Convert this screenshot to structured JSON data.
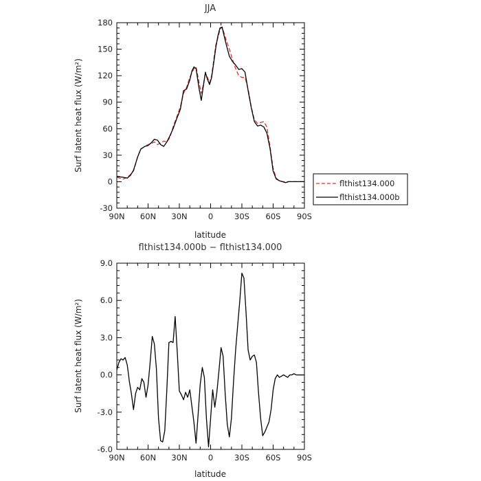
{
  "chart_data": [
    {
      "type": "line",
      "title": "JJA",
      "xlabel": "latitude",
      "ylabel": "Surf latent heat flux (W/m²)",
      "xlim": [
        90,
        -90
      ],
      "ylim": [
        -30,
        180
      ],
      "xticks": [
        {
          "value": 90,
          "label": "90N"
        },
        {
          "value": 60,
          "label": "60N"
        },
        {
          "value": 30,
          "label": "30N"
        },
        {
          "value": 0,
          "label": "0"
        },
        {
          "value": -30,
          "label": "30S"
        },
        {
          "value": -60,
          "label": "60S"
        },
        {
          "value": -90,
          "label": "90S"
        }
      ],
      "yticks": [
        {
          "value": -30,
          "label": "-30"
        },
        {
          "value": 0,
          "label": "0"
        },
        {
          "value": 30,
          "label": "30"
        },
        {
          "value": 60,
          "label": "60"
        },
        {
          "value": 90,
          "label": "90"
        },
        {
          "value": 120,
          "label": "120"
        },
        {
          "value": 150,
          "label": "150"
        },
        {
          "value": 180,
          "label": "180"
        }
      ],
      "legend_position": "right",
      "series": [
        {
          "name": "flthist134.000",
          "color": "#e03030",
          "dash": "dashed",
          "x": [
            90,
            84,
            80,
            77,
            74,
            70,
            67,
            63,
            60,
            57,
            54,
            51,
            48,
            45,
            42,
            39,
            36,
            32,
            29,
            26,
            23,
            20,
            18,
            16,
            14,
            11,
            9,
            7,
            5,
            3,
            1,
            -1,
            -3,
            -5,
            -7,
            -9,
            -11,
            -13,
            -15,
            -18,
            -21,
            -24,
            -27,
            -30,
            -33,
            -36,
            -39,
            -42,
            -45,
            -48,
            -51,
            -54,
            -57,
            -60,
            -63,
            -66,
            -69,
            -72,
            -75,
            -78,
            -81,
            -84,
            -87,
            -90
          ],
          "y": [
            5,
            3,
            5,
            8,
            12,
            28,
            37,
            40,
            42,
            43,
            45,
            42,
            44,
            46,
            45,
            50,
            62,
            75,
            85,
            100,
            107,
            118,
            123,
            128,
            130,
            112,
            100,
            110,
            122,
            118,
            112,
            120,
            138,
            155,
            163,
            172,
            175,
            168,
            160,
            150,
            138,
            128,
            120,
            118,
            118,
            105,
            85,
            70,
            66,
            67,
            68,
            62,
            40,
            15,
            4,
            1,
            0,
            0,
            0,
            0,
            0,
            0,
            0,
            0
          ]
        },
        {
          "name": "flthist134.000b",
          "color": "#000000",
          "dash": "solid",
          "x": [
            90,
            84,
            80,
            77,
            74,
            70,
            67,
            63,
            60,
            57,
            54,
            51,
            48,
            45,
            42,
            39,
            36,
            32,
            29,
            26,
            23,
            20,
            18,
            16,
            14,
            11,
            9,
            7,
            5,
            3,
            1,
            -1,
            -3,
            -5,
            -7,
            -9,
            -11,
            -13,
            -15,
            -18,
            -21,
            -24,
            -27,
            -30,
            -33,
            -36,
            -39,
            -42,
            -45,
            -48,
            -51,
            -54,
            -57,
            -60,
            -63,
            -66,
            -69,
            -72,
            -75,
            -78,
            -81,
            -84,
            -87,
            -90
          ],
          "y": [
            6,
            5,
            4,
            7,
            13,
            28,
            37,
            40,
            41,
            44,
            48,
            47,
            42,
            40,
            45,
            52,
            60,
            73,
            82,
            103,
            105,
            115,
            125,
            130,
            128,
            105,
            92,
            108,
            124,
            116,
            110,
            118,
            135,
            152,
            165,
            174,
            175,
            165,
            155,
            142,
            136,
            132,
            127,
            128,
            124,
            103,
            84,
            68,
            63,
            64,
            62,
            55,
            38,
            12,
            3,
            1,
            0,
            -1,
            0,
            0,
            0,
            0,
            0,
            0
          ]
        }
      ]
    },
    {
      "type": "line",
      "title": "flthist134.000b − flthist134.000",
      "xlabel": "latitude",
      "ylabel": "Surf latent heat flux (W/m²)",
      "xlim": [
        90,
        -90
      ],
      "ylim": [
        -6,
        9
      ],
      "xticks": [
        {
          "value": 90,
          "label": "90N"
        },
        {
          "value": 60,
          "label": "60N"
        },
        {
          "value": 30,
          "label": "30N"
        },
        {
          "value": 0,
          "label": "0"
        },
        {
          "value": -30,
          "label": "30S"
        },
        {
          "value": -60,
          "label": "60S"
        },
        {
          "value": -90,
          "label": "90S"
        }
      ],
      "yticks": [
        {
          "value": -6,
          "label": "-6.0"
        },
        {
          "value": -3,
          "label": "-3.0"
        },
        {
          "value": 0,
          "label": "0.0"
        },
        {
          "value": 3,
          "label": "3.0"
        },
        {
          "value": 6,
          "label": "6.0"
        },
        {
          "value": 9,
          "label": "9.0"
        }
      ],
      "series": [
        {
          "color": "#000000",
          "dash": "solid",
          "x": [
            90,
            88,
            86,
            84,
            82,
            80,
            78,
            76,
            74,
            72,
            70,
            68,
            66,
            64,
            62,
            60,
            58,
            56,
            54,
            52,
            50,
            48,
            46,
            44,
            42,
            40,
            38,
            36,
            34,
            32,
            30,
            28,
            26,
            24,
            22,
            20,
            18,
            16,
            14,
            12,
            10,
            8,
            6,
            4,
            2,
            0,
            -2,
            -4,
            -6,
            -8,
            -10,
            -12,
            -14,
            -16,
            -18,
            -20,
            -22,
            -24,
            -26,
            -28,
            -30,
            -32,
            -34,
            -36,
            -38,
            -40,
            -42,
            -44,
            -46,
            -48,
            -50,
            -52,
            -54,
            -56,
            -58,
            -60,
            -62,
            -64,
            -66,
            -68,
            -70,
            -72,
            -74,
            -76,
            -78,
            -80,
            -82,
            -84,
            -86,
            -88,
            -90
          ],
          "y": [
            0.4,
            1.0,
            1.3,
            1.2,
            1.4,
            0.8,
            -0.5,
            -1.5,
            -2.8,
            -1.5,
            -1.0,
            -1.2,
            -0.3,
            -0.6,
            -1.8,
            -0.8,
            1.0,
            3.1,
            2.5,
            0.5,
            -3.5,
            -5.3,
            -5.4,
            -4.5,
            -1.2,
            2.6,
            2.7,
            2.6,
            4.7,
            1.8,
            -1.3,
            -1.6,
            -2.0,
            -1.4,
            -1.8,
            -1.2,
            -2.5,
            -3.8,
            -5.5,
            -3.2,
            -0.8,
            0.6,
            -0.2,
            -3.5,
            -5.8,
            -3.5,
            -1.2,
            -2.6,
            -1.4,
            0.3,
            2.2,
            1.5,
            -1.5,
            -4.0,
            -5.0,
            -3.5,
            -0.5,
            2.0,
            4.0,
            6.0,
            8.2,
            7.8,
            5.0,
            2.0,
            1.2,
            1.5,
            1.6,
            1.0,
            -1.5,
            -3.5,
            -4.9,
            -4.6,
            -4.2,
            -3.8,
            -2.8,
            -1.2,
            -0.3,
            0.0,
            -0.2,
            -0.1,
            0.0,
            -0.1,
            -0.2,
            0.0,
            0.0,
            0.1,
            0.0,
            0.0,
            0.0,
            0.0,
            0.0
          ]
        }
      ]
    }
  ]
}
